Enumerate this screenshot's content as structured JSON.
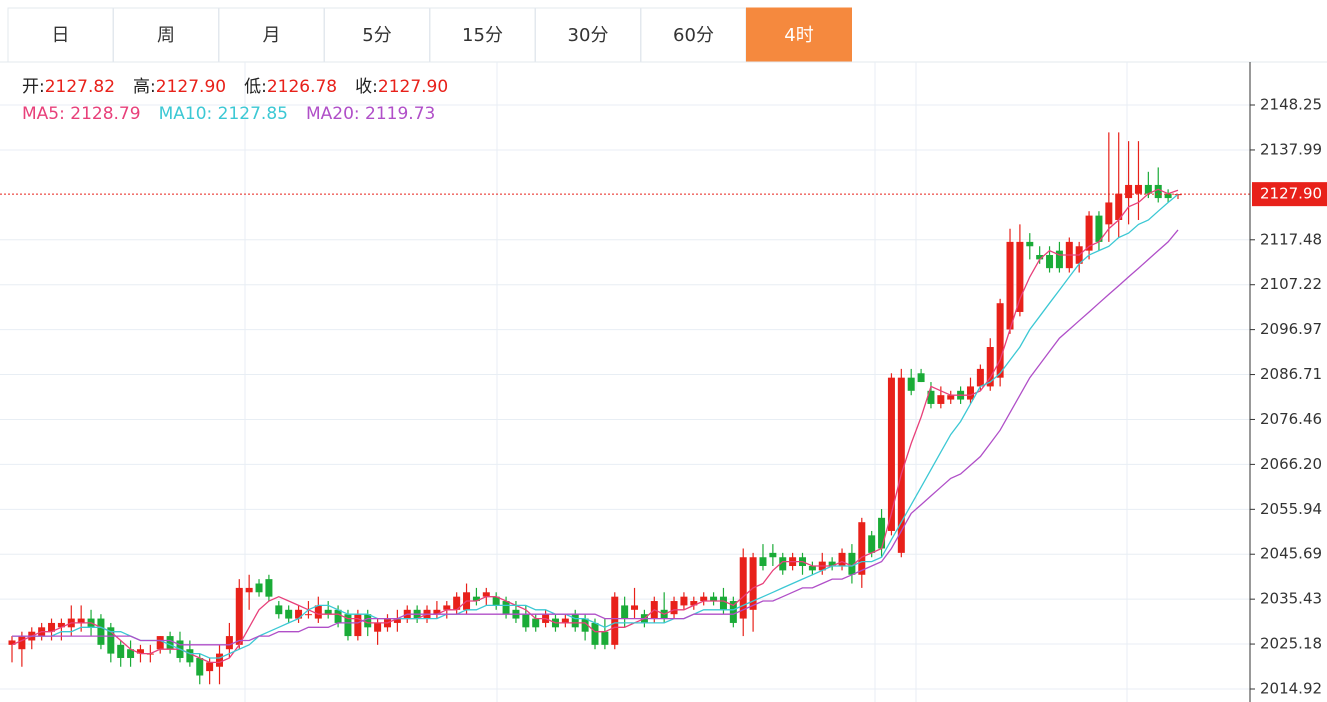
{
  "tabs": [
    "日",
    "周",
    "月",
    "5分",
    "15分",
    "30分",
    "60分",
    "4时"
  ],
  "active_tab": "4时",
  "info": [
    {
      "label": "开:",
      "value": "2127.82"
    },
    {
      "label": "高:",
      "value": "2127.90"
    },
    {
      "label": "低:",
      "value": "2126.78"
    },
    {
      "label": "收:",
      "value": "2127.90"
    }
  ],
  "chart_data": {
    "type": "candlestick",
    "up_color": "#e8211a",
    "down_color": "#1aab37",
    "ylim": [
      2011.95,
      2158.07
    ],
    "yticks": [
      2148.25,
      2137.99,
      2117.48,
      2107.22,
      2096.97,
      2086.71,
      2076.46,
      {
        "value": 2066.2,
        "label": "2066.20"
      },
      2055.94,
      2045.69,
      2035.43,
      2025.18,
      2014.92
    ],
    "grid": true,
    "last_price": {
      "value": 2127.9,
      "label": "2127.90"
    },
    "ohlc": [
      [
        2025,
        2027,
        2021,
        2026
      ],
      [
        2024,
        2028,
        2020,
        2027
      ],
      [
        2026,
        2029,
        2024,
        2028
      ],
      [
        2027,
        2030,
        2026,
        2029
      ],
      [
        2028,
        2031,
        2026,
        2030
      ],
      [
        2029,
        2031,
        2026,
        2030
      ],
      [
        2029,
        2034,
        2027,
        2031
      ],
      [
        2030,
        2034,
        2028,
        2031
      ],
      [
        2031,
        2033,
        2027,
        2029
      ],
      [
        2031,
        2032,
        2024,
        2025
      ],
      [
        2029,
        2030,
        2021,
        2023
      ],
      [
        2025,
        2026,
        2020,
        2022
      ],
      [
        2024,
        2026,
        2020,
        2022
      ],
      [
        2023,
        2025,
        2021,
        2024
      ],
      [
        2023,
        2025,
        2021,
        2023
      ],
      [
        2024,
        2027,
        2023,
        2027
      ],
      [
        2027,
        2028,
        2023,
        2024
      ],
      [
        2026,
        2028,
        2021,
        2022
      ],
      [
        2024,
        2026,
        2020,
        2021
      ],
      [
        2022,
        2023,
        2016,
        2018
      ],
      [
        2019,
        2022,
        2016,
        2021
      ],
      [
        2020,
        2025,
        2016,
        2023
      ],
      [
        2024,
        2030,
        2022,
        2027
      ],
      [
        2025,
        2040,
        2024,
        2038
      ],
      [
        2037,
        2041,
        2033,
        2038
      ],
      [
        2039,
        2040,
        2036,
        2037
      ],
      [
        2040,
        2041,
        2035,
        2036
      ],
      [
        2034,
        2035,
        2031,
        2032
      ],
      [
        2033,
        2034,
        2030,
        2031
      ],
      [
        2031,
        2034,
        2030,
        2033
      ],
      [
        2032,
        2035,
        2031,
        2032
      ],
      [
        2031,
        2036,
        2030,
        2034
      ],
      [
        2033,
        2035,
        2031,
        2032
      ],
      [
        2033,
        2034,
        2029,
        2030
      ],
      [
        2032,
        2033,
        2026,
        2027
      ],
      [
        2027,
        2033,
        2026,
        2032
      ],
      [
        2032,
        2033,
        2027,
        2029
      ],
      [
        2028,
        2031,
        2025,
        2030
      ],
      [
        2029,
        2032,
        2028,
        2031
      ],
      [
        2030,
        2033,
        2028,
        2031
      ],
      [
        2031,
        2034,
        2030,
        2033
      ],
      [
        2033,
        2034,
        2030,
        2031
      ],
      [
        2031,
        2034,
        2030,
        2033
      ],
      [
        2032,
        2035,
        2031,
        2033
      ],
      [
        2033,
        2035,
        2031,
        2034
      ],
      [
        2033,
        2037,
        2032,
        2036
      ],
      [
        2033,
        2039,
        2032,
        2037
      ],
      [
        2036,
        2038,
        2034,
        2035
      ],
      [
        2036,
        2038,
        2034,
        2037
      ],
      [
        2036,
        2037,
        2033,
        2034
      ],
      [
        2035,
        2036,
        2031,
        2032
      ],
      [
        2033,
        2035,
        2030,
        2031
      ],
      [
        2032,
        2034,
        2028,
        2029
      ],
      [
        2031,
        2032,
        2028,
        2029
      ],
      [
        2030,
        2033,
        2029,
        2032
      ],
      [
        2031,
        2032,
        2028,
        2029
      ],
      [
        2030,
        2032,
        2029,
        2031
      ],
      [
        2032,
        2033,
        2028,
        2029
      ],
      [
        2031,
        2032,
        2026,
        2028
      ],
      [
        2030,
        2031,
        2024,
        2025
      ],
      [
        2028,
        2031,
        2024,
        2025
      ],
      [
        2025,
        2037,
        2024,
        2036
      ],
      [
        2034,
        2036,
        2029,
        2031
      ],
      [
        2033,
        2038,
        2031,
        2034
      ],
      [
        2032,
        2033,
        2029,
        2030
      ],
      [
        2031,
        2036,
        2030,
        2035
      ],
      [
        2033,
        2037,
        2030,
        2031
      ],
      [
        2032,
        2036,
        2031,
        2035
      ],
      [
        2034,
        2037,
        2033,
        2036
      ],
      [
        2034,
        2036,
        2033,
        2035
      ],
      [
        2035,
        2037,
        2034,
        2036
      ],
      [
        2036,
        2037,
        2034,
        2035
      ],
      [
        2036,
        2038,
        2032,
        2033
      ],
      [
        2035,
        2036,
        2029,
        2030
      ],
      [
        2031,
        2047,
        2027,
        2045
      ],
      [
        2033,
        2046,
        2028,
        2045
      ],
      [
        2045,
        2048,
        2042,
        2043
      ],
      [
        2046,
        2048,
        2043,
        2045
      ],
      [
        2045,
        2046,
        2041,
        2042
      ],
      [
        2043,
        2046,
        2042,
        2045
      ],
      [
        2045,
        2046,
        2041,
        2043
      ],
      [
        2043,
        2044,
        2041,
        2042
      ],
      [
        2042,
        2046,
        2041,
        2044
      ],
      [
        2044,
        2045,
        2042,
        2043
      ],
      [
        2043,
        2047,
        2042,
        2046
      ],
      [
        2046,
        2048,
        2039,
        2041
      ],
      [
        2041,
        2054,
        2038,
        2053
      ],
      [
        2050,
        2051,
        2045,
        2046
      ],
      [
        2054,
        2056,
        2045,
        2047
      ],
      [
        2051,
        2087,
        2050,
        2086
      ],
      [
        2046,
        2088,
        2045,
        2086
      ],
      [
        2086,
        2088,
        2082,
        2083
      ],
      [
        2087,
        2088,
        2085,
        2085
      ],
      [
        2083,
        2085,
        2079,
        2080
      ],
      [
        2080,
        2084,
        2079,
        2082
      ],
      [
        2081,
        2083,
        2080,
        2082
      ],
      [
        2083,
        2084,
        2080,
        2081
      ],
      [
        2081,
        2086,
        2080,
        2084
      ],
      [
        2084,
        2089,
        2083,
        2088
      ],
      [
        2084,
        2095,
        2083,
        2093
      ],
      [
        2086,
        2104,
        2084,
        2103
      ],
      [
        2097,
        2120,
        2096,
        2117
      ],
      [
        2101,
        2121,
        2100,
        2117
      ],
      [
        2117,
        2119,
        2113,
        2116
      ],
      [
        2114,
        2116,
        2112,
        2113
      ],
      [
        2114,
        2116,
        2110,
        2111
      ],
      [
        2115,
        2117,
        2110,
        2111
      ],
      [
        2111,
        2118,
        2110,
        2117
      ],
      [
        2112,
        2117,
        2110,
        2116
      ],
      [
        2115,
        2124,
        2113,
        2123
      ],
      [
        2123,
        2124,
        2115,
        2117
      ],
      [
        2121,
        2142,
        2117,
        2126
      ],
      [
        2122,
        2142,
        2118,
        2128
      ],
      [
        2127,
        2140,
        2121,
        2130
      ],
      [
        2128,
        2140,
        2122,
        2130
      ],
      [
        2130,
        2133,
        2127,
        2128
      ],
      [
        2130,
        2134,
        2126,
        2127
      ],
      [
        2128,
        2129,
        2126,
        2127
      ],
      [
        2127.82,
        2127.9,
        2126.78,
        2127.9
      ]
    ],
    "series": [
      {
        "name": "MA5",
        "color": "#e8407a",
        "value_label": "2128.79",
        "values": [
          2025,
          2026,
          2027,
          2028,
          2028,
          2029,
          2030,
          2030,
          2030,
          2029,
          2028,
          2026,
          2024,
          2023,
          2023,
          2024,
          2024,
          2024,
          2023,
          2022,
          2021,
          2021,
          2022,
          2025,
          2029,
          2033,
          2035,
          2036,
          2035,
          2034,
          2033,
          2032,
          2032,
          2032,
          2031,
          2031,
          2030,
          2030,
          2030,
          2031,
          2031,
          2031,
          2032,
          2032,
          2033,
          2033,
          2035,
          2035,
          2036,
          2036,
          2035,
          2034,
          2033,
          2031,
          2031,
          2030,
          2030,
          2030,
          2030,
          2028,
          2028,
          2029,
          2029,
          2030,
          2031,
          2033,
          2032,
          2033,
          2033,
          2034,
          2035,
          2035,
          2035,
          2034,
          2036,
          2038,
          2039,
          2042,
          2044,
          2044,
          2044,
          2043,
          2043,
          2043,
          2044,
          2043,
          2045,
          2046,
          2047,
          2055,
          2064,
          2071,
          2077,
          2084,
          2083,
          2082,
          2082,
          2082,
          2083,
          2086,
          2090,
          2097,
          2104,
          2109,
          2113,
          2115,
          2114,
          2114,
          2114,
          2116,
          2117,
          2120,
          2122,
          2125,
          2126,
          2128,
          2129,
          2128,
          2128.79
        ]
      },
      {
        "name": "MA10",
        "color": "#3cc8d4",
        "value_label": "2127.85",
        "values": [
          2027,
          2027,
          2027,
          2027,
          2027,
          2028,
          2028,
          2029,
          2029,
          2029,
          2028,
          2028,
          2027,
          2026,
          2026,
          2026,
          2025,
          2024,
          2023,
          2023,
          2022,
          2022,
          2023,
          2024,
          2025,
          2027,
          2028,
          2029,
          2030,
          2031,
          2033,
          2034,
          2034,
          2033,
          2032,
          2032,
          2032,
          2031,
          2031,
          2031,
          2031,
          2031,
          2031,
          2031,
          2032,
          2032,
          2033,
          2033,
          2034,
          2034,
          2034,
          2034,
          2034,
          2033,
          2033,
          2032,
          2032,
          2031,
          2031,
          2030,
          2029,
          2030,
          2030,
          2030,
          2030,
          2030,
          2030,
          2031,
          2031,
          2032,
          2033,
          2033,
          2033,
          2033,
          2034,
          2035,
          2036,
          2037,
          2038,
          2039,
          2040,
          2041,
          2042,
          2043,
          2043,
          2043,
          2044,
          2044,
          2045,
          2049,
          2053,
          2057,
          2061,
          2065,
          2069,
          2073,
          2076,
          2080,
          2084,
          2085,
          2087,
          2090,
          2093,
          2097,
          2100,
          2103,
          2106,
          2109,
          2112,
          2114,
          2115,
          2116,
          2118,
          2119,
          2121,
          2122,
          2124,
          2126,
          2127.85
        ]
      },
      {
        "name": "MA20",
        "color": "#b04fc8",
        "value_label": "2119.73",
        "values": [
          2027,
          2027,
          2027,
          2027,
          2027,
          2027,
          2027,
          2027,
          2027,
          2027,
          2027,
          2027,
          2027,
          2026,
          2026,
          2026,
          2026,
          2025,
          2025,
          2025,
          2025,
          2025,
          2025,
          2026,
          2026,
          2027,
          2027,
          2028,
          2028,
          2028,
          2029,
          2029,
          2029,
          2030,
          2030,
          2030,
          2031,
          2031,
          2031,
          2031,
          2032,
          2032,
          2032,
          2032,
          2032,
          2032,
          2032,
          2032,
          2032,
          2032,
          2032,
          2032,
          2032,
          2032,
          2032,
          2032,
          2032,
          2032,
          2032,
          2032,
          2031,
          2031,
          2031,
          2031,
          2031,
          2031,
          2031,
          2031,
          2031,
          2032,
          2032,
          2032,
          2032,
          2032,
          2033,
          2034,
          2035,
          2035,
          2036,
          2037,
          2038,
          2038,
          2039,
          2040,
          2040,
          2041,
          2042,
          2043,
          2044,
          2047,
          2051,
          2055,
          2057,
          2059,
          2061,
          2063,
          2064,
          2066,
          2068,
          2071,
          2074,
          2078,
          2082,
          2086,
          2089,
          2092,
          2095,
          2097,
          2099,
          2101,
          2103,
          2105,
          2107,
          2109,
          2111,
          2113,
          2115,
          2117,
          2119.73
        ]
      }
    ]
  }
}
